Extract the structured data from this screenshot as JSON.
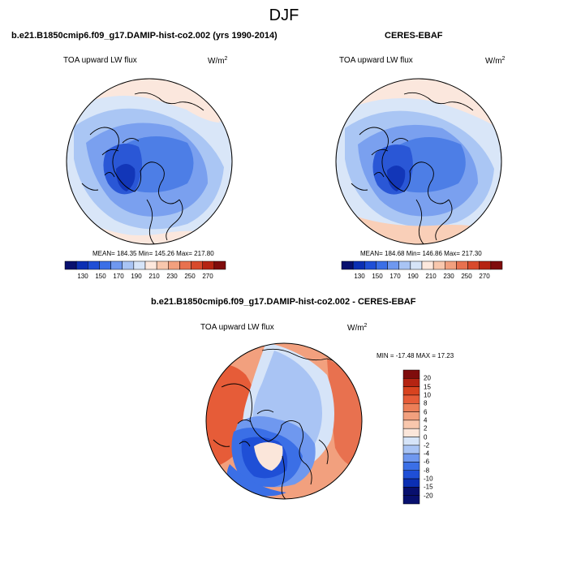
{
  "figure": {
    "title": "DJF"
  },
  "panels": {
    "model": {
      "title": "b.e21.B1850cmip6.f09_g17.DAMIP-hist-co2.002 (yrs 1990-2014)",
      "variable": "TOA upward LW flux",
      "units_base": "W/m",
      "units_exp": "2",
      "stats": "MEAN= 184.35  Min= 145.26  Max= 217.80",
      "colorbar_ticks": [
        "130",
        "150",
        "170",
        "190",
        "210",
        "230",
        "250",
        "270"
      ]
    },
    "obs": {
      "title": "CERES-EBAF",
      "variable": "TOA upward LW flux",
      "units_base": "W/m",
      "units_exp": "2",
      "stats": "MEAN= 184.68  Min= 146.86  Max= 217.30",
      "colorbar_ticks": [
        "130",
        "150",
        "170",
        "190",
        "210",
        "230",
        "250",
        "270"
      ]
    },
    "diff": {
      "title": "b.e21.B1850cmip6.f09_g17.DAMIP-hist-co2.002 - CERES-EBAF",
      "variable": "TOA upward LW flux",
      "units_base": "W/m",
      "units_exp": "2",
      "stats": "MIN = -17.48 MAX =  17.23",
      "colorbar_ticks": [
        "20",
        "15",
        "10",
        "8",
        "6",
        "4",
        "2",
        "0",
        "-2",
        "-4",
        "-6",
        "-8",
        "-10",
        "-15",
        "-20"
      ]
    }
  },
  "colors": {
    "abs_scale": [
      "#08106e",
      "#0b2fb3",
      "#1f4fd6",
      "#3b6fe6",
      "#6f98ef",
      "#a9c4f4",
      "#d6e4f8",
      "#fde8dd",
      "#f8c7ad",
      "#f2a07e",
      "#e8714f",
      "#d84a2c",
      "#b52412",
      "#7f0c0c"
    ],
    "diff_scale": [
      "#08106e",
      "#0b2fb3",
      "#1f4fd6",
      "#3b6fe6",
      "#6f98ef",
      "#a9c4f4",
      "#d6e4f8",
      "#fbe6da",
      "#f8c7ad",
      "#f2a07e",
      "#ec7f58",
      "#e65c38",
      "#d8431f",
      "#b52412",
      "#7f0c0c"
    ]
  }
}
